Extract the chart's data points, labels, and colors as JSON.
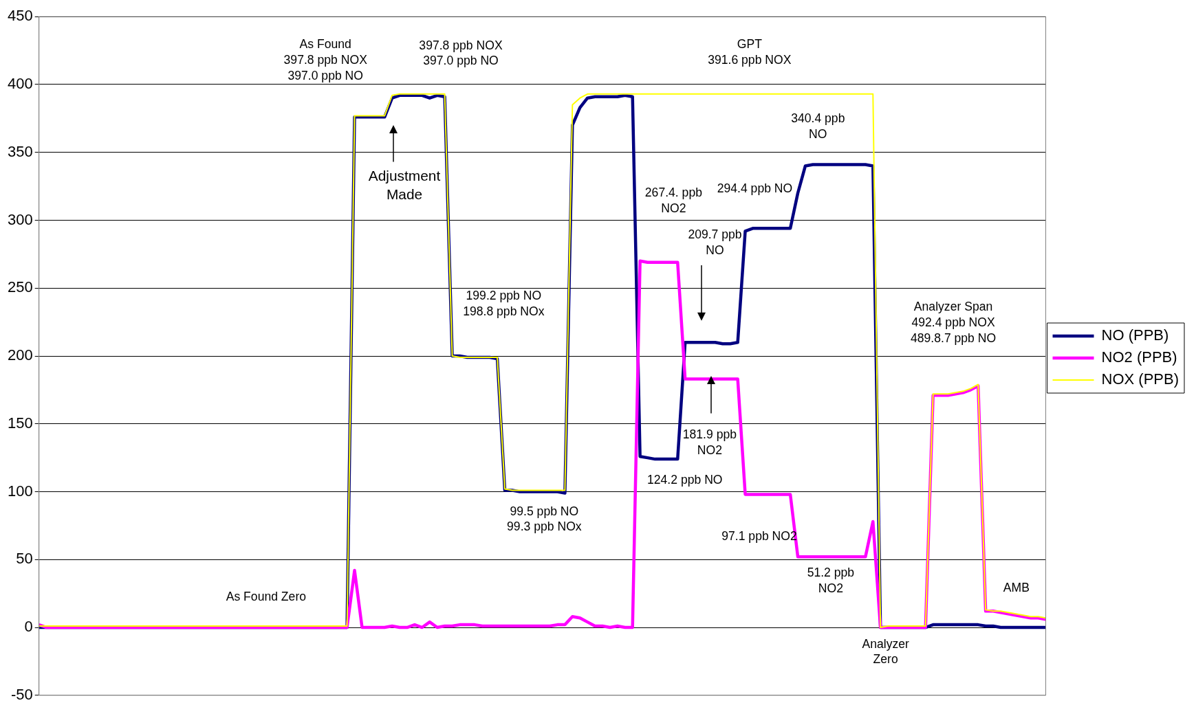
{
  "chart_data": {
    "type": "line",
    "categories": [
      null,
      null,
      null,
      null,
      null,
      null,
      null,
      null,
      null,
      null,
      null,
      null,
      null,
      null,
      null,
      null,
      null,
      null,
      null,
      null,
      null,
      null,
      null,
      null,
      null,
      null,
      null,
      null,
      null,
      null,
      null,
      null,
      null,
      null,
      null,
      null,
      null,
      null,
      null,
      null,
      null,
      null,
      null,
      null,
      null,
      null,
      null,
      null,
      null,
      null,
      null,
      null,
      null,
      null,
      null,
      null,
      null,
      null,
      null,
      null,
      null,
      null,
      null,
      null,
      null,
      null,
      null,
      null,
      null,
      null,
      null,
      null,
      null,
      null,
      null,
      null,
      null,
      null,
      null,
      null,
      null,
      null,
      null,
      null,
      null,
      null,
      null,
      null,
      null,
      null,
      null,
      null,
      null,
      null,
      null,
      null,
      null,
      null,
      null,
      null,
      null,
      null,
      null,
      null,
      null,
      null,
      null,
      null,
      null,
      null,
      null,
      null,
      null,
      null,
      null,
      null,
      null,
      null,
      null,
      null,
      null,
      null,
      null,
      null,
      null,
      null,
      null,
      null,
      null,
      null,
      null,
      null,
      null,
      null,
      null
    ],
    "series": [
      {
        "name": "NO (PPB)",
        "color": "#000080",
        "values": [
          0,
          0,
          0,
          0,
          0,
          0,
          0,
          0,
          0,
          0,
          0,
          0,
          0,
          0,
          0,
          0,
          0,
          0,
          0,
          0,
          0,
          0,
          0,
          0,
          0,
          0,
          0,
          0,
          0,
          0,
          0,
          0,
          0,
          0,
          0,
          0,
          0,
          0,
          0,
          0,
          0,
          0,
          376,
          376,
          376,
          376,
          376,
          390,
          392,
          392,
          392,
          392,
          390,
          392,
          391,
          200,
          200,
          199,
          199,
          199,
          199,
          198,
          101,
          101,
          100,
          100,
          100,
          100,
          100,
          100,
          99,
          370,
          383,
          390,
          391,
          391,
          391,
          391,
          392,
          391,
          126,
          125,
          124,
          124,
          124,
          124,
          210,
          210,
          210,
          210,
          210,
          209,
          209,
          210,
          292,
          294,
          294,
          294,
          294,
          294,
          294,
          320,
          340,
          341,
          341,
          341,
          341,
          341,
          341,
          341,
          341,
          340,
          0,
          0,
          0,
          0,
          0,
          0,
          0,
          2,
          2,
          2,
          2,
          2,
          2,
          2,
          1,
          1,
          0,
          0,
          0,
          0,
          0,
          0,
          0
        ]
      },
      {
        "name": "NO2 (PPB)",
        "color": "#ff00ff",
        "values": [
          2,
          0,
          0,
          0,
          0,
          0,
          0,
          0,
          0,
          0,
          0,
          0,
          0,
          0,
          0,
          0,
          0,
          0,
          0,
          0,
          0,
          0,
          0,
          0,
          0,
          0,
          0,
          0,
          0,
          0,
          0,
          0,
          0,
          0,
          0,
          0,
          0,
          0,
          0,
          0,
          0,
          0,
          42,
          0,
          0,
          0,
          0,
          1,
          0,
          0,
          2,
          0,
          4,
          0,
          1,
          1,
          2,
          2,
          2,
          1,
          1,
          1,
          1,
          1,
          1,
          1,
          1,
          1,
          1,
          2,
          2,
          8,
          7,
          4,
          1,
          1,
          0,
          1,
          0,
          0,
          270,
          269,
          269,
          269,
          269,
          269,
          183,
          183,
          183,
          183,
          183,
          183,
          183,
          183,
          98,
          98,
          98,
          98,
          98,
          98,
          98,
          52,
          52,
          52,
          52,
          52,
          52,
          52,
          52,
          52,
          52,
          78,
          0,
          0,
          0,
          0,
          0,
          0,
          0,
          171,
          171,
          171,
          172,
          173,
          175,
          178,
          12,
          12,
          11,
          10,
          9,
          8,
          7,
          7,
          6
        ]
      },
      {
        "name": "NOX (PPB)",
        "color": "#ffff00",
        "values": [
          1,
          1,
          1,
          1,
          1,
          1,
          1,
          1,
          1,
          1,
          1,
          1,
          1,
          1,
          1,
          1,
          1,
          1,
          1,
          1,
          1,
          1,
          1,
          1,
          1,
          1,
          1,
          1,
          1,
          1,
          1,
          1,
          1,
          1,
          1,
          1,
          1,
          1,
          1,
          1,
          1,
          1,
          377,
          377,
          377,
          377,
          377,
          392,
          393,
          393,
          393,
          393,
          393,
          393,
          393,
          200,
          199,
          199,
          199,
          199,
          199,
          199,
          102,
          101,
          101,
          101,
          101,
          101,
          101,
          101,
          101,
          385,
          390,
          393,
          393,
          393,
          393,
          393,
          393,
          393,
          393,
          393,
          393,
          393,
          393,
          393,
          393,
          393,
          393,
          393,
          393,
          393,
          393,
          393,
          393,
          393,
          393,
          393,
          393,
          393,
          393,
          393,
          393,
          393,
          393,
          393,
          393,
          393,
          393,
          393,
          393,
          393,
          0,
          1,
          1,
          1,
          1,
          1,
          1,
          172,
          172,
          172,
          173,
          174,
          176,
          179,
          13,
          12,
          12,
          11,
          10,
          9,
          8,
          8,
          7
        ]
      }
    ],
    "ylim": [
      -50,
      450
    ],
    "yticks": [
      -50,
      0,
      50,
      100,
      150,
      200,
      250,
      300,
      350,
      400,
      450
    ],
    "grid": "y",
    "legend": "right",
    "tick_labels": "y",
    "marker": "none",
    "line_style": "solid",
    "annotations": [
      "As Found\n397.8 ppb NOX\n397.0 ppb NO",
      "397.8 ppb NOX\n397.0 ppb NO",
      "Adjustment\nMade",
      "GPT\n391.6 ppb NOX",
      "340.4 ppb\nNO",
      "267.4. ppb\nNO2",
      "294.4 ppb NO",
      "209.7 ppb\nNO",
      "199.2 ppb NO\n198.8 ppb NOx",
      "Analyzer Span\n492.4 ppb NOX\n489.8.7 ppb NO",
      "181.9 ppb\nNO2",
      "124.2 ppb NO",
      "99.5 ppb NO\n99.3 ppb NOx",
      "97.1 ppb NO2",
      "51.2 ppb\nNO2",
      "AMB",
      "As Found Zero",
      "Analyzer\nZero"
    ]
  }
}
